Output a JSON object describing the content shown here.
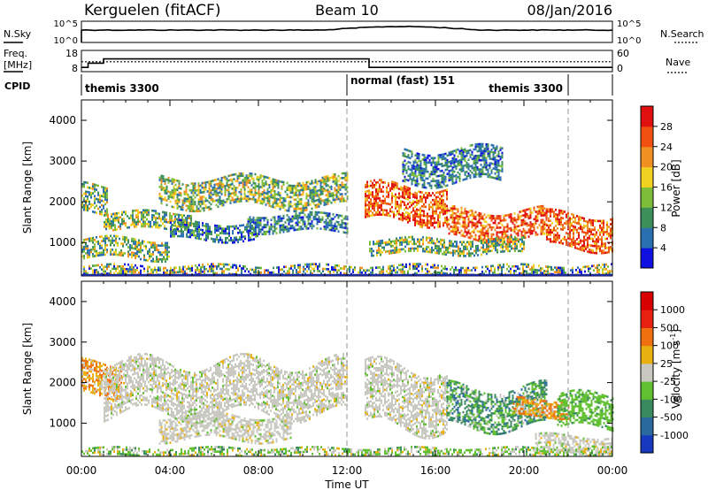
{
  "header": {
    "station": "Kerguelen (fitACF)",
    "beam": "Beam 10",
    "date": "08/Jan/2016"
  },
  "strips": {
    "nsky_label": "N.Sky",
    "nsky_ticks": [
      "10^5",
      "10^0"
    ],
    "nsearch_label": "N.Search",
    "nsearch_ticks": [
      "10^5",
      "10^0"
    ],
    "freq_label": "Freq.",
    "freq_unit": "[MHz]",
    "freq_ticks": [
      "18",
      "8"
    ],
    "nave_label": "Nave",
    "nave_ticks": [
      "60",
      "0"
    ],
    "cpid_label": "CPID",
    "freq_values": [
      {
        "t": 0.0,
        "f": 10
      },
      {
        "t": 0.3,
        "f": 10
      },
      {
        "t": 0.3,
        "f": 12
      },
      {
        "t": 1.0,
        "f": 12
      },
      {
        "t": 1.0,
        "f": 14
      },
      {
        "t": 13.0,
        "f": 14
      },
      {
        "t": 13.0,
        "f": 10
      },
      {
        "t": 24.0,
        "f": 10
      }
    ],
    "nave_level": 28
  },
  "cpid_segments": [
    {
      "label": "themis 3300",
      "start": 0,
      "end": 12,
      "anchor": "start"
    },
    {
      "label": "normal (fast) 151",
      "start": 12,
      "end": 22,
      "anchor": "start"
    },
    {
      "label": "themis 3300",
      "start": 22,
      "end": 24,
      "anchor": "end"
    }
  ],
  "axes": {
    "x_ticks": [
      "00:00",
      "04:00",
      "08:00",
      "12:00",
      "16:00",
      "20:00",
      "00:00"
    ],
    "x_label": "Time UT",
    "y_label": "Slant Range [km]",
    "y_ticks": [
      "1000",
      "2000",
      "3000",
      "4000"
    ]
  },
  "colorbars": {
    "power": {
      "label": "Power [dB]",
      "ticks": [
        "4",
        "8",
        "12",
        "16",
        "20",
        "24",
        "28"
      ],
      "colors": [
        "#1010e0",
        "#2a6fb0",
        "#3d8f5a",
        "#7dbd3a",
        "#f0d020",
        "#f09020",
        "#f05010",
        "#e01010"
      ]
    },
    "velocity": {
      "label": "Velocity [m s^-1]",
      "ticks": [
        "1000",
        "500",
        "100",
        "25",
        "-25",
        "-100",
        "-500",
        "-1000"
      ],
      "colors": [
        "#1838c0",
        "#2a68a0",
        "#3a8a60",
        "#60c030",
        "#c8c8c0",
        "#e8b010",
        "#f07010",
        "#e82010",
        "#d80000"
      ]
    }
  },
  "chart_data": [
    {
      "type": "heatmap",
      "name": "power-panel",
      "x_range_hours": [
        0,
        24
      ],
      "y_range_km": [
        180,
        4500
      ],
      "ylabel": "Slant Range [km]",
      "xlabel": "Time UT",
      "colorbar_label": "Power [dB]",
      "dashed_lines_hours": [
        12,
        22
      ],
      "echo_bands": [
        {
          "t0": 0.0,
          "t1": 1.2,
          "r0": 1700,
          "r1": 2400,
          "level": "mid"
        },
        {
          "t0": 1.0,
          "t1": 5.0,
          "r0": 1350,
          "r1": 1750,
          "level": "mid"
        },
        {
          "t0": 0.0,
          "t1": 4.0,
          "r0": 600,
          "r1": 1100,
          "level": "mid"
        },
        {
          "t0": 4.0,
          "t1": 8.0,
          "r0": 1050,
          "r1": 1500,
          "level": "low"
        },
        {
          "t0": 3.5,
          "t1": 12.0,
          "r0": 1900,
          "r1": 2600,
          "level": "mid"
        },
        {
          "t0": 7.5,
          "t1": 12.0,
          "r0": 1300,
          "r1": 1700,
          "level": "low"
        },
        {
          "t0": 12.8,
          "t1": 16.5,
          "r0": 1500,
          "r1": 2400,
          "level": "high"
        },
        {
          "t0": 16.5,
          "t1": 21.0,
          "r0": 1100,
          "r1": 1800,
          "level": "high"
        },
        {
          "t0": 13.0,
          "t1": 20.0,
          "r0": 750,
          "r1": 1100,
          "level": "mid"
        },
        {
          "t0": 14.5,
          "t1": 19.0,
          "r0": 2500,
          "r1": 3300,
          "level": "low"
        },
        {
          "t0": 21.0,
          "t1": 24.0,
          "r0": 900,
          "r1": 1700,
          "level": "high"
        },
        {
          "t0": 0.0,
          "t1": 24.0,
          "r0": 180,
          "r1": 450,
          "level": "mixed"
        }
      ]
    },
    {
      "type": "heatmap",
      "name": "velocity-panel",
      "x_range_hours": [
        0,
        24
      ],
      "y_range_km": [
        180,
        4500
      ],
      "ylabel": "Slant Range [km]",
      "xlabel": "Time UT",
      "colorbar_label": "Velocity [m s^-1]",
      "dashed_lines_hours": [
        12,
        22
      ],
      "echo_bands": [
        {
          "t0": 0.0,
          "t1": 1.8,
          "r0": 1700,
          "r1": 2500,
          "level": "toward"
        },
        {
          "t0": 1.0,
          "t1": 12.0,
          "r0": 1200,
          "r1": 2500,
          "level": "grey"
        },
        {
          "t0": 3.5,
          "t1": 9.5,
          "r0": 600,
          "r1": 1200,
          "level": "grey"
        },
        {
          "t0": 12.8,
          "t1": 16.5,
          "r0": 900,
          "r1": 2400,
          "level": "grey"
        },
        {
          "t0": 16.5,
          "t1": 21.0,
          "r0": 900,
          "r1": 1900,
          "level": "away"
        },
        {
          "t0": 19.5,
          "t1": 22.0,
          "r0": 1200,
          "r1": 1600,
          "level": "toward"
        },
        {
          "t0": 21.5,
          "t1": 24.0,
          "r0": 900,
          "r1": 1700,
          "level": "bright-away"
        },
        {
          "t0": 20.5,
          "t1": 24.0,
          "r0": 250,
          "r1": 700,
          "level": "grey"
        },
        {
          "t0": 0.0,
          "t1": 24.0,
          "r0": 180,
          "r1": 400,
          "level": "mixed-green"
        }
      ]
    }
  ]
}
